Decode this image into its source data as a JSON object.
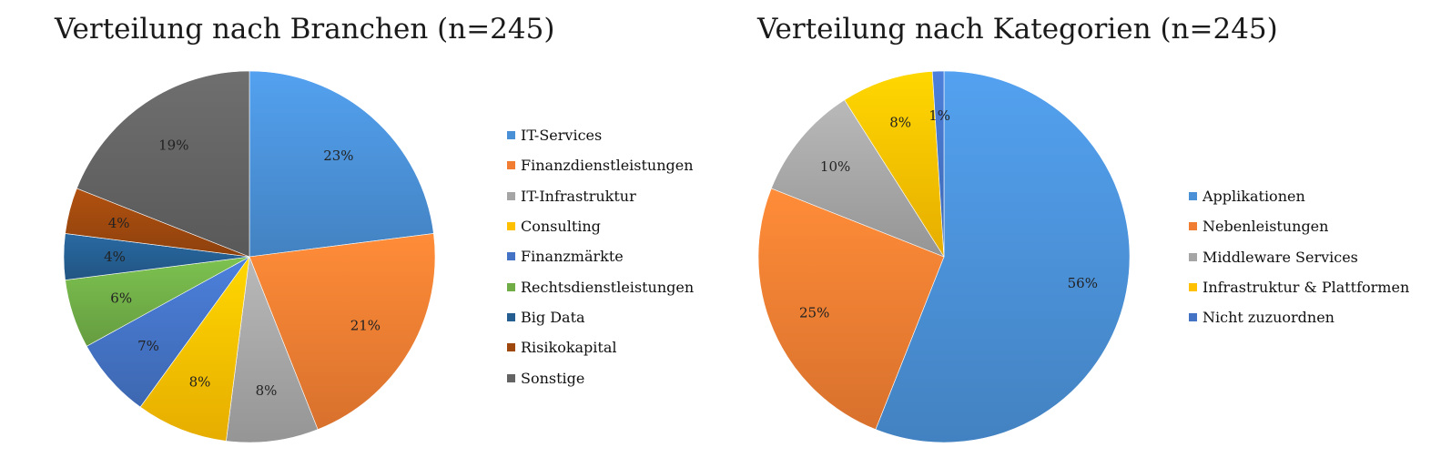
{
  "chart_data": [
    {
      "type": "pie",
      "title": "Verteilung nach Branchen (n=245)",
      "labels": [
        "IT-Services",
        "Finanzdienstleistungen",
        "IT-Infrastruktur",
        "Consulting",
        "Finanzmärkte",
        "Rechtsdienstleistungen",
        "Big Data",
        "Risikokapital",
        "Sonstige"
      ],
      "values": [
        23,
        21,
        8,
        8,
        7,
        6,
        4,
        4,
        19
      ],
      "value_labels": [
        "23%",
        "21%",
        "8%",
        "8%",
        "7%",
        "6%",
        "4%",
        "4%",
        "19%"
      ],
      "colors": [
        "#4a90d6",
        "#f07d32",
        "#a5a5a5",
        "#ffc000",
        "#4472c4",
        "#70ad47",
        "#255e91",
        "#9e480e",
        "#636363"
      ],
      "legend_position": "right"
    },
    {
      "type": "pie",
      "title": "Verteilung nach Kategorien (n=245)",
      "labels": [
        "Applikationen",
        "Nebenleistungen",
        "Middleware Services",
        "Infrastruktur & Plattformen",
        "Nicht zuzuordnen"
      ],
      "values": [
        56,
        25,
        10,
        8,
        1
      ],
      "value_labels": [
        "56%",
        "25%",
        "10%",
        "8%",
        "1%"
      ],
      "colors": [
        "#4a90d6",
        "#f07d32",
        "#a5a5a5",
        "#ffc000",
        "#4472c4"
      ],
      "legend_position": "right"
    }
  ]
}
